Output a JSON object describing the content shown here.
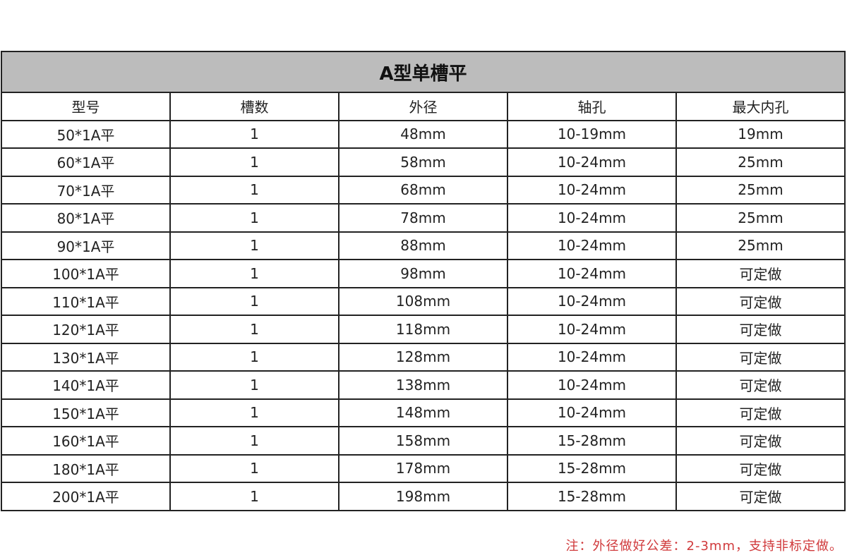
{
  "title": "A型单槽平",
  "headers": [
    "型号",
    "槽数",
    "外径",
    "轴孔",
    "最大内孔"
  ],
  "rows": [
    [
      "50*1A平",
      "1",
      "48mm",
      "10-19mm",
      "19mm"
    ],
    [
      "60*1A平",
      "1",
      "58mm",
      "10-24mm",
      "25mm"
    ],
    [
      "70*1A平",
      "1",
      "68mm",
      "10-24mm",
      "25mm"
    ],
    [
      "80*1A平",
      "1",
      "78mm",
      "10-24mm",
      "25mm"
    ],
    [
      "90*1A平",
      "1",
      "88mm",
      "10-24mm",
      "25mm"
    ],
    [
      "100*1A平",
      "1",
      "98mm",
      "10-24mm",
      "可定做"
    ],
    [
      "110*1A平",
      "1",
      "108mm",
      "10-24mm",
      "可定做"
    ],
    [
      "120*1A平",
      "1",
      "118mm",
      "10-24mm",
      "可定做"
    ],
    [
      "130*1A平",
      "1",
      "128mm",
      "10-24mm",
      "可定做"
    ],
    [
      "140*1A平",
      "1",
      "138mm",
      "10-24mm",
      "可定做"
    ],
    [
      "150*1A平",
      "1",
      "148mm",
      "10-24mm",
      "可定做"
    ],
    [
      "160*1A平",
      "1",
      "158mm",
      "15-28mm",
      "可定做"
    ],
    [
      "180*1A平",
      "1",
      "178mm",
      "15-28mm",
      "可定做"
    ],
    [
      "200*1A平",
      "1",
      "198mm",
      "15-28mm",
      "可定做"
    ]
  ],
  "note": "注：外径做好公差：2-3mm，支持非标定做。",
  "colors": {
    "title_bg": "#bcbcbc",
    "note": "#d0393b"
  }
}
